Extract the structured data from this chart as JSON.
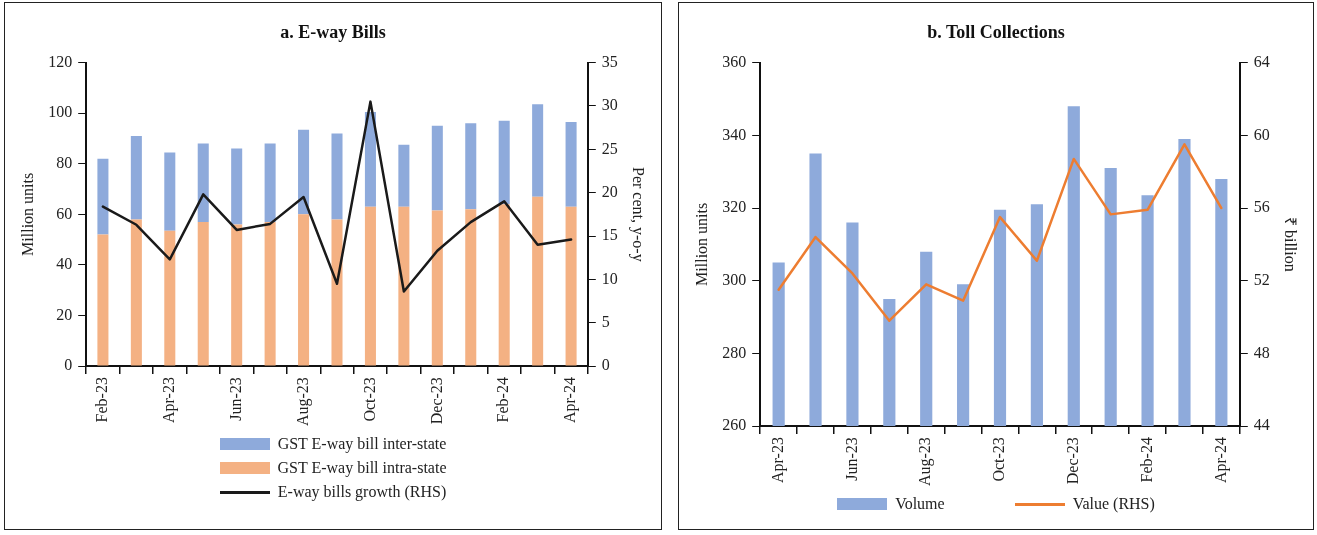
{
  "chart_data": [
    {
      "type": "bar",
      "title": "a. E-way Bills",
      "ylabel": "Million units",
      "y2label": "Per cent, y-o-y",
      "stacked": true,
      "legend": "bottom",
      "categories": [
        "Feb-23",
        null,
        "Apr-23",
        null,
        "Jun-23",
        null,
        "Aug-23",
        null,
        "Oct-23",
        null,
        "Dec-23",
        null,
        "Feb-24",
        null,
        "Apr-24"
      ],
      "ylim": [
        0,
        120
      ],
      "yticks": [
        0,
        20,
        40,
        60,
        80,
        100,
        120
      ],
      "y2lim": [
        0,
        35
      ],
      "y2ticks": [
        0,
        5,
        10,
        15,
        20,
        25,
        30,
        35
      ],
      "series": [
        {
          "name": "GST E-way bill intra-state",
          "color": "#f4b183",
          "values": [
            52,
            58,
            53.5,
            57,
            56,
            57,
            60,
            58,
            63,
            63,
            61.5,
            62,
            64,
            67,
            63
          ]
        },
        {
          "name": "GST E-way bill inter-state",
          "color": "#8eaadb",
          "values": [
            30,
            33,
            31,
            31,
            30,
            31,
            33.5,
            34,
            37.5,
            24.5,
            33.5,
            34,
            33,
            36.5,
            33.5
          ]
        },
        {
          "name": "E-way bills growth (RHS)",
          "type": "line",
          "axis": "y2",
          "color": "#1a1a1a",
          "values": [
            18.4,
            16.3,
            12.3,
            19.8,
            15.7,
            16.4,
            19.5,
            9.5,
            30.5,
            8.6,
            13.3,
            16.6,
            19,
            14,
            14.6
          ]
        }
      ]
    },
    {
      "type": "bar",
      "title": "b. Toll Collections",
      "ylabel": "Million units",
      "y2label": "₹ billion",
      "legend": "bottom",
      "categories": [
        "Apr-23",
        null,
        "Jun-23",
        null,
        "Aug-23",
        null,
        "Oct-23",
        null,
        "Dec-23",
        null,
        "Feb-24",
        null,
        "Apr-24"
      ],
      "ylim": [
        260,
        360
      ],
      "yticks": [
        260,
        280,
        300,
        320,
        340,
        360
      ],
      "y2lim": [
        44,
        64
      ],
      "y2ticks": [
        44,
        48,
        52,
        56,
        60,
        64
      ],
      "series": [
        {
          "name": "Volume",
          "color": "#8eaadb",
          "values": [
            305,
            335,
            316,
            295,
            308,
            299,
            319.5,
            321,
            348,
            331,
            323.5,
            339,
            328
          ]
        },
        {
          "name": "Value (RHS)",
          "type": "line",
          "axis": "y2",
          "color": "#ed7d31",
          "values": [
            51.5,
            54.4,
            52.4,
            49.8,
            51.8,
            50.9,
            55.5,
            53.1,
            58.7,
            55.65,
            55.9,
            59.5,
            56
          ]
        }
      ]
    }
  ]
}
